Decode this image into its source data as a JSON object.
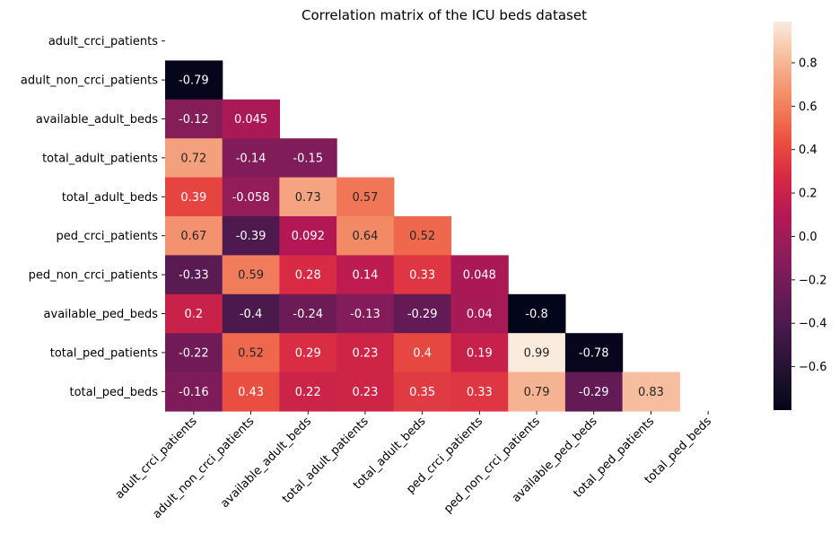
{
  "chart_data": {
    "type": "heatmap",
    "title": "Correlation matrix of the ICU beds dataset",
    "xlabel": "",
    "ylabel": "",
    "labels": [
      "adult_crci_patients",
      "adult_non_crci_patients",
      "available_adult_beds",
      "total_adult_patients",
      "total_adult_beds",
      "ped_crci_patients",
      "ped_non_crci_patients",
      "available_ped_beds",
      "total_ped_patients",
      "total_ped_beds"
    ],
    "mask": "upper triangle including diagonal",
    "cells": [
      [
        null,
        null,
        null,
        null,
        null,
        null,
        null,
        null,
        null,
        null
      ],
      [
        -0.79,
        null,
        null,
        null,
        null,
        null,
        null,
        null,
        null,
        null
      ],
      [
        -0.12,
        0.045,
        null,
        null,
        null,
        null,
        null,
        null,
        null,
        null
      ],
      [
        0.72,
        -0.14,
        -0.15,
        null,
        null,
        null,
        null,
        null,
        null,
        null
      ],
      [
        0.39,
        -0.058,
        0.73,
        0.57,
        null,
        null,
        null,
        null,
        null,
        null
      ],
      [
        0.67,
        -0.39,
        0.092,
        0.64,
        0.52,
        null,
        null,
        null,
        null,
        null
      ],
      [
        -0.33,
        0.59,
        0.28,
        0.14,
        0.33,
        0.048,
        null,
        null,
        null,
        null
      ],
      [
        0.2,
        -0.4,
        -0.24,
        -0.13,
        -0.29,
        0.04,
        -0.8,
        null,
        null,
        null
      ],
      [
        -0.22,
        0.52,
        0.29,
        0.23,
        0.4,
        0.19,
        0.99,
        -0.78,
        null,
        null
      ],
      [
        -0.16,
        0.43,
        0.22,
        0.23,
        0.35,
        0.33,
        0.79,
        -0.29,
        0.83,
        null
      ]
    ],
    "colorbar": {
      "colormap": "rocket",
      "vmin": -0.8,
      "vmax": 0.99,
      "ticks": [
        "−0.6",
        "−0.4",
        "−0.2",
        "0.0",
        "0.2",
        "0.4",
        "0.6",
        "0.8"
      ],
      "tick_values": [
        -0.6,
        -0.4,
        -0.2,
        0.0,
        0.2,
        0.4,
        0.6,
        0.8
      ]
    },
    "grid": false,
    "legend": "colorbar-right"
  }
}
